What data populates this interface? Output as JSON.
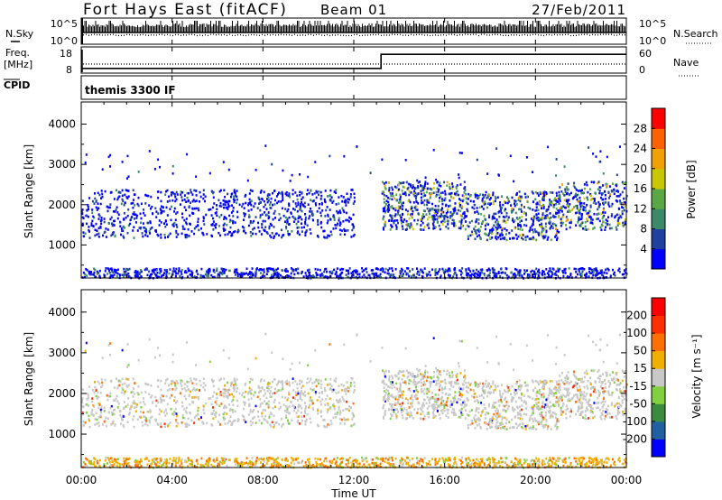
{
  "header": {
    "title": "Fort Hays East (fitACF)",
    "beam": "Beam 01",
    "date": "27/Feb/2011"
  },
  "param_panels": {
    "nsky_label": "N.Sky",
    "nsky_ticks": [
      "10^5",
      "10^0"
    ],
    "nsearch_label": "N.Search",
    "nsearch_ticks": [
      "10^5",
      "10^0"
    ],
    "freq_label": "Freq.",
    "freq_unit": "[MHz]",
    "freq_ticks": [
      "18",
      "8"
    ],
    "nave_label": "Nave",
    "nave_ticks": [
      "60",
      "0"
    ],
    "cpid_label": "CPID",
    "cpid_value": "themis 3300 IF"
  },
  "chart_data": [
    {
      "type": "heatmap",
      "panel": "power",
      "ylabel": "Slant Range [km]",
      "yticks": [
        1000,
        2000,
        3000,
        4000
      ],
      "ylim": [
        180,
        4550
      ],
      "xlim": [
        0,
        24
      ],
      "colorbar_label": "Power [dB]",
      "colorbar_ticks": [
        "28",
        "24",
        "20",
        "16",
        "12",
        "8",
        "4"
      ],
      "colorbar_colors": [
        "#0000ff",
        "#2040a0",
        "#3a8a6a",
        "#5aa845",
        "#c8c800",
        "#f0a000",
        "#ff6000",
        "#ff0000"
      ],
      "bands": [
        {
          "t_start": 0.0,
          "t_end": 12.0,
          "r_start": 1200,
          "r_end": 2400,
          "level": "low"
        },
        {
          "t_start": 13.2,
          "t_end": 24.0,
          "r_start": 1100,
          "r_end": 2600,
          "level": "mid"
        },
        {
          "t_start": 0.0,
          "t_end": 24.0,
          "r_start": 200,
          "r_end": 450,
          "level": "low"
        }
      ]
    },
    {
      "type": "heatmap",
      "panel": "velocity",
      "xlabel": "Time UT",
      "ylabel": "Slant Range [km]",
      "yticks": [
        1000,
        2000,
        3000,
        4000
      ],
      "ylim": [
        180,
        4550
      ],
      "xlim": [
        0,
        24
      ],
      "xticks": [
        "00:00",
        "04:00",
        "08:00",
        "12:00",
        "16:00",
        "20:00",
        "00:00"
      ],
      "colorbar_label": "Velocity [m s⁻¹]",
      "colorbar_ticks": [
        "200",
        "100",
        "50",
        "15",
        "-15",
        "-50",
        "-100",
        "-200"
      ],
      "colorbar_colors": [
        "#0000ff",
        "#2060a0",
        "#3a8a40",
        "#80d040",
        "#c8c8c8",
        "#f0b000",
        "#ff7000",
        "#ff3000",
        "#ff0000"
      ]
    }
  ],
  "timeseries": {
    "freq_step_time": 13.2,
    "freq_before": 10,
    "freq_after": 16
  }
}
